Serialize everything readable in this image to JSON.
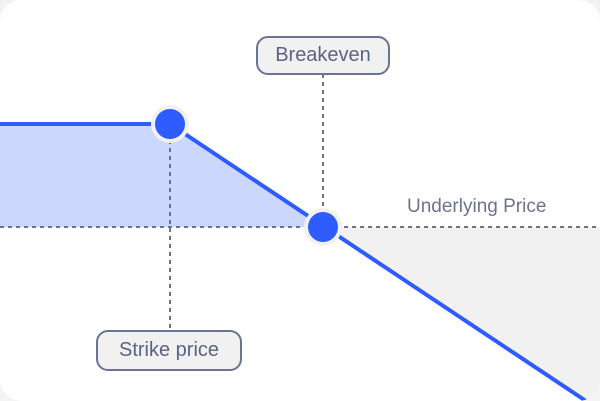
{
  "labels": {
    "breakeven": "Breakeven",
    "strike_price": "Strike price",
    "axis": "Underlying Price"
  },
  "colors": {
    "payoff_line": "#2f5cff",
    "profit_fill": "#cbd7fd",
    "loss_fill": "#f1f1f2",
    "dashed": "#6b7390"
  }
}
